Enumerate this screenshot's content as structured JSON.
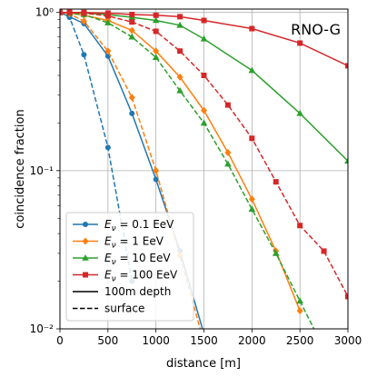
{
  "chart_data": {
    "type": "line",
    "title": "",
    "annotation": "RNO-G",
    "xlabel": "distance [m]",
    "ylabel": "coincidence fraction",
    "xlim": [
      0,
      3000
    ],
    "ylim": [
      0.01,
      1.05
    ],
    "yscale": "log",
    "grid": true,
    "legend_position": "lower-left",
    "x_ticks": [
      0,
      500,
      1000,
      1500,
      2000,
      2500,
      3000
    ],
    "x_tick_labels": [
      "0",
      "500",
      "1000",
      "1500",
      "2000",
      "2500",
      "3000"
    ],
    "y_ticks": [
      1,
      0.1,
      0.01
    ],
    "y_tick_labels": [
      "10⁰",
      "10⁻¹",
      "10⁻²"
    ],
    "series": [
      {
        "name": "E_ν = 0.1 EeV",
        "energy": "0.1 EeV",
        "depth": "100m depth",
        "color": "#1f77b4",
        "marker": "circle",
        "x": [
          0,
          100,
          250,
          500,
          750,
          1000,
          1250,
          1500
        ],
        "y": [
          1.0,
          0.94,
          0.85,
          0.53,
          0.23,
          0.088,
          0.031,
          0.0093
        ]
      },
      {
        "name": "E_ν = 0.1 EeV",
        "energy": "0.1 EeV",
        "depth": "surface",
        "color": "#1f77b4",
        "marker": "circle",
        "x": [
          0,
          100,
          250,
          500,
          750
        ],
        "y": [
          1.0,
          0.93,
          0.54,
          0.14,
          0.02
        ]
      },
      {
        "name": "E_ν = 1 EeV",
        "energy": "1 EeV",
        "depth": "100m depth",
        "color": "#ff7f0e",
        "marker": "diamond",
        "x": [
          0,
          100,
          250,
          500,
          750,
          1000,
          1250,
          1500,
          1750,
          2000,
          2250,
          2500
        ],
        "y": [
          1.0,
          0.99,
          0.96,
          0.89,
          0.77,
          0.57,
          0.39,
          0.24,
          0.13,
          0.066,
          0.031,
          0.013
        ]
      },
      {
        "name": "E_ν = 1 EeV",
        "energy": "1 EeV",
        "depth": "surface",
        "color": "#ff7f0e",
        "marker": "diamond",
        "x": [
          0,
          100,
          250,
          500,
          750,
          1000,
          1250,
          1500
        ],
        "y": [
          1.0,
          0.98,
          0.88,
          0.57,
          0.29,
          0.1,
          0.029,
          0.0082
        ]
      },
      {
        "name": "E_ν = 10 EeV",
        "energy": "10 EeV",
        "depth": "100m depth",
        "color": "#2ca02c",
        "marker": "triangle",
        "x": [
          0,
          100,
          250,
          500,
          750,
          1000,
          1250,
          1500,
          2000,
          2500,
          3000
        ],
        "y": [
          1.0,
          1.0,
          0.99,
          0.97,
          0.93,
          0.89,
          0.83,
          0.68,
          0.43,
          0.23,
          0.115
        ]
      },
      {
        "name": "E_ν = 10 EeV",
        "energy": "10 EeV",
        "depth": "surface",
        "color": "#2ca02c",
        "marker": "triangle",
        "x": [
          0,
          100,
          250,
          500,
          750,
          1000,
          1250,
          1500,
          1750,
          2000,
          2250,
          2500,
          2750
        ],
        "y": [
          1.0,
          0.99,
          0.97,
          0.86,
          0.7,
          0.52,
          0.32,
          0.2,
          0.11,
          0.057,
          0.03,
          0.015,
          0.0075
        ]
      },
      {
        "name": "E_ν = 100 EeV",
        "energy": "100 EeV",
        "depth": "100m depth",
        "color": "#d62728",
        "marker": "square",
        "x": [
          0,
          100,
          250,
          500,
          750,
          1000,
          1250,
          1500,
          2000,
          2500,
          3000
        ],
        "y": [
          1.0,
          1.0,
          1.0,
          0.99,
          0.97,
          0.96,
          0.94,
          0.89,
          0.79,
          0.64,
          0.46
        ]
      },
      {
        "name": "E_ν = 100 EeV",
        "energy": "100 EeV",
        "depth": "surface",
        "color": "#d62728",
        "marker": "square",
        "x": [
          0,
          100,
          250,
          500,
          750,
          1000,
          1250,
          1500,
          1750,
          2000,
          2250,
          2500,
          2750,
          3000
        ],
        "y": [
          1.0,
          1.0,
          0.99,
          0.95,
          0.87,
          0.76,
          0.57,
          0.4,
          0.26,
          0.16,
          0.085,
          0.045,
          0.031,
          0.016
        ]
      }
    ],
    "legend": {
      "entries": [
        {
          "label": "E_ν = 0.1 EeV",
          "color": "#1f77b4",
          "marker": "circle",
          "style": "solid"
        },
        {
          "label": "E_ν = 1 EeV",
          "color": "#ff7f0e",
          "marker": "diamond",
          "style": "solid"
        },
        {
          "label": "E_ν = 10 EeV",
          "color": "#2ca02c",
          "marker": "triangle",
          "style": "solid"
        },
        {
          "label": "E_ν = 100 EeV",
          "color": "#d62728",
          "marker": "square",
          "style": "solid"
        },
        {
          "label": "100m depth",
          "color": "#000000",
          "marker": "none",
          "style": "solid"
        },
        {
          "label": "surface",
          "color": "#000000",
          "marker": "none",
          "style": "dashed"
        }
      ]
    }
  }
}
